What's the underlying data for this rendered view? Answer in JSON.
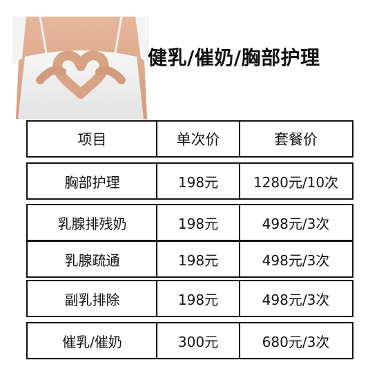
{
  "title": "健乳/催奶/胸部护理",
  "table": {
    "headers": [
      "项目",
      "单次价",
      "套餐价"
    ],
    "rows": [
      [
        "胸部护理",
        "198元",
        "1280元/10次"
      ],
      [
        "乳腺排残奶",
        "198元",
        "498元/3次"
      ],
      [
        "乳腺疏通",
        "198元",
        "498元/3次"
      ],
      [
        "副乳排除",
        "198元",
        "498元/3次"
      ],
      [
        "催乳/催奶",
        "300元",
        "680元/3次"
      ]
    ]
  }
}
